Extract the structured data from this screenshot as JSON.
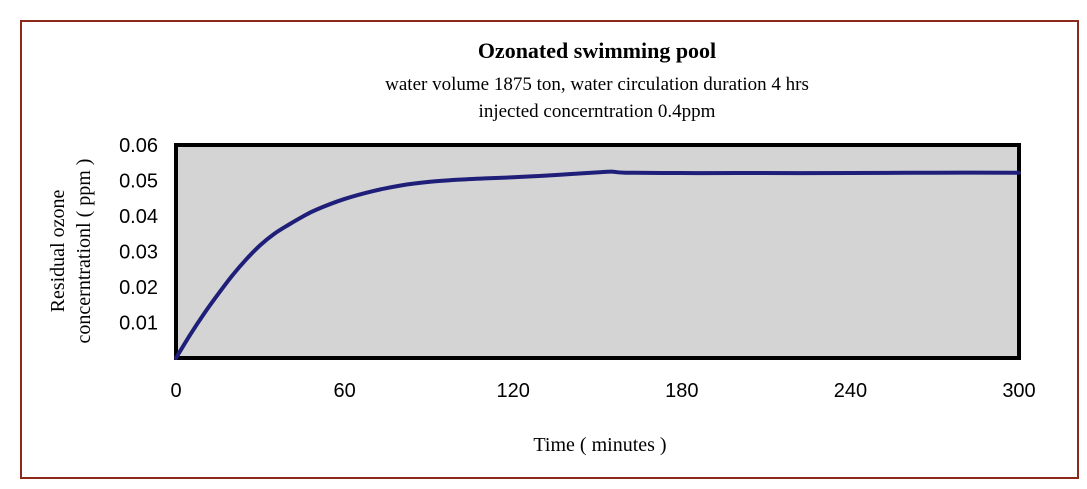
{
  "chart_data": {
    "type": "line",
    "title": "Ozonated swimming pool",
    "subtitle_lines": [
      "water volume 1875 ton, water circulation duration 4 hrs",
      "injected concerntration 0.4ppm"
    ],
    "xlabel": "Time ( minutes )",
    "ylabel_lines": [
      "Residual ozone",
      "concerntrationl ( ppm )"
    ],
    "xlim": [
      0,
      300
    ],
    "ylim": [
      0,
      0.06
    ],
    "x_ticks": [
      "0",
      "60",
      "120",
      "180",
      "240",
      "300"
    ],
    "y_ticks": [
      "0.01",
      "0.02",
      "0.03",
      "0.04",
      "0.05",
      "0.06"
    ],
    "grid": false,
    "legend": "none",
    "colors": {
      "line": "#1f1f7a",
      "plot_background": "#d4d4d4",
      "frame_border": "#8b2a1a"
    },
    "series": [
      {
        "x": [
          0,
          5,
          10,
          15,
          20,
          25,
          30,
          35,
          40,
          45,
          50,
          60,
          70,
          80,
          90,
          100,
          110,
          120,
          130,
          140,
          150,
          155,
          160,
          180,
          200,
          240,
          270,
          300
        ],
        "y": [
          0,
          0.0065,
          0.0125,
          0.018,
          0.0232,
          0.0278,
          0.0318,
          0.035,
          0.0375,
          0.0398,
          0.0418,
          0.0448,
          0.047,
          0.0486,
          0.0496,
          0.0502,
          0.0506,
          0.0509,
          0.0513,
          0.0518,
          0.0523,
          0.0525,
          0.0522,
          0.0521,
          0.0521,
          0.0521,
          0.0522,
          0.0522
        ]
      }
    ]
  }
}
